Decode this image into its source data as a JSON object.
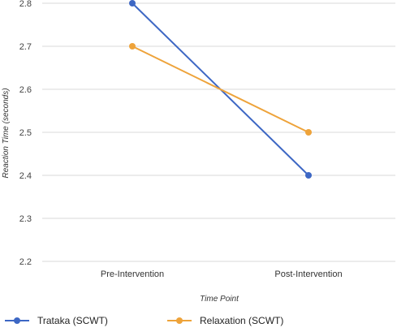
{
  "chart_data": {
    "type": "line",
    "title": "",
    "xlabel": "Time Point",
    "ylabel": "Reaction Time (seconds)",
    "categories": [
      "Pre-Intervention",
      "Post-Intervention"
    ],
    "ylim": [
      2.2,
      2.8
    ],
    "yticks": [
      "2.2",
      "2.3",
      "2.4",
      "2.5",
      "2.6",
      "2.7",
      "2.8"
    ],
    "grid": true,
    "legend_position": "bottom-left",
    "series": [
      {
        "name": "Trataka (SCWT)",
        "values": [
          2.8,
          2.4
        ],
        "color": "#3d67c4"
      },
      {
        "name": "Relaxation (SCWT)",
        "values": [
          2.7,
          2.5
        ],
        "color": "#eea33a"
      }
    ]
  }
}
